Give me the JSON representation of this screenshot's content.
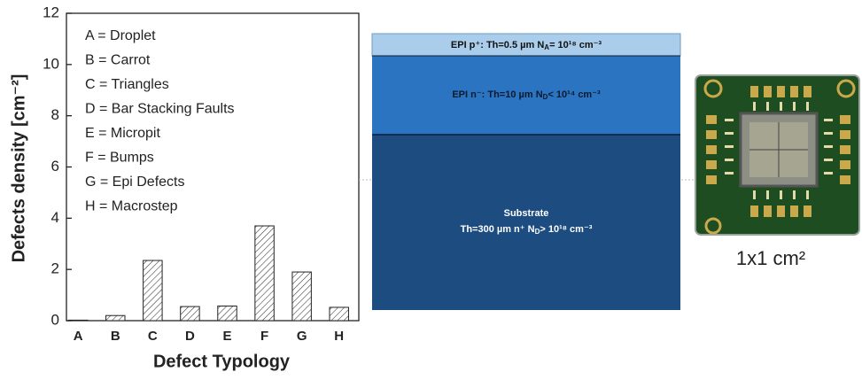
{
  "chart_data": {
    "type": "bar",
    "x_label": "Defect Typology",
    "y_label": "Defects density [cm⁻²]",
    "categories": [
      "A",
      "B",
      "C",
      "D",
      "E",
      "F",
      "G",
      "H"
    ],
    "values": [
      0.02,
      0.2,
      2.35,
      0.55,
      0.57,
      3.7,
      1.9,
      0.52
    ],
    "color": "#ffffff",
    "ylim": [
      0,
      12
    ],
    "yticks": [
      0,
      2,
      4,
      6,
      8,
      10,
      12
    ],
    "annotations": [
      "A = Droplet",
      "B = Carrot",
      "C = Triangles",
      "D = Bar Stacking Faults",
      "E = Micropit",
      "F = Bumps",
      "G = Epi Defects",
      "H = Macrostep"
    ]
  },
  "layers": [
    {
      "name": "EPI p⁺:",
      "thickness": "Th=0.5 µm",
      "doping": "N",
      "doping_sub": "A",
      "doping_value": "= 10¹⁸ cm⁻³"
    },
    {
      "name": "EPI n⁻:",
      "thickness": "Th=10 µm",
      "doping": "N",
      "doping_sub": "D",
      "doping_value": "< 10¹⁴ cm⁻³"
    },
    {
      "name": "Substrate",
      "thickness": "Th=300 µm n⁺",
      "doping": "N",
      "doping_sub": "D",
      "doping_value": "> 10¹⁸ cm⁻³"
    }
  ],
  "photo": {
    "caption": "1x1 cm²"
  }
}
